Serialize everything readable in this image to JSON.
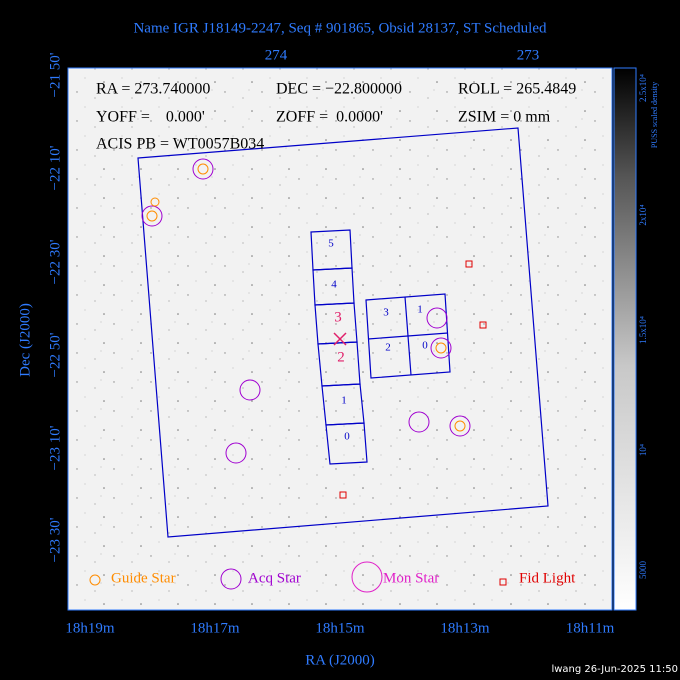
{
  "header": {
    "title": "Name IGR J18149-2247, Seq # 901865, Obsid 28137, ST Scheduled"
  },
  "info": {
    "line1": [
      "RA = 273.740000",
      "DEC = −22.800000",
      "ROLL = 265.4849"
    ],
    "line2": [
      "YOFF =    0.000'",
      "ZOFF =  0.0000'",
      "ZSIM = 0 mm"
    ],
    "line3": "ACIS PB = WT0057B034"
  },
  "axes": {
    "x_title": "RA (J2000)",
    "y_title": "Dec (J2000)",
    "x_ticks": [
      "18h19m",
      "18h17m",
      "18h15m",
      "18h13m",
      "18h11m"
    ],
    "top_ticks": [
      "274",
      "273"
    ],
    "y_ticks": [
      "−21 50'",
      "−22 10'",
      "−22 30'",
      "−22 50'",
      "−23 10'",
      "−23 30'"
    ]
  },
  "colorbar": {
    "title": "PUSS scaled density",
    "ticks": [
      "2.5x10⁴",
      "2x10⁴",
      "1.5x10⁴",
      "10⁴",
      "5000"
    ]
  },
  "chips": {
    "s_array": [
      "5",
      "4",
      "3",
      "2",
      "1",
      "0"
    ],
    "i_array": [
      "3",
      "1",
      "2",
      "0"
    ]
  },
  "legend": [
    "Guide Star",
    "Acq Star",
    "Mon Star",
    "Fid Light"
  ],
  "footer": "lwang 26-Jun-2025 11:50"
}
